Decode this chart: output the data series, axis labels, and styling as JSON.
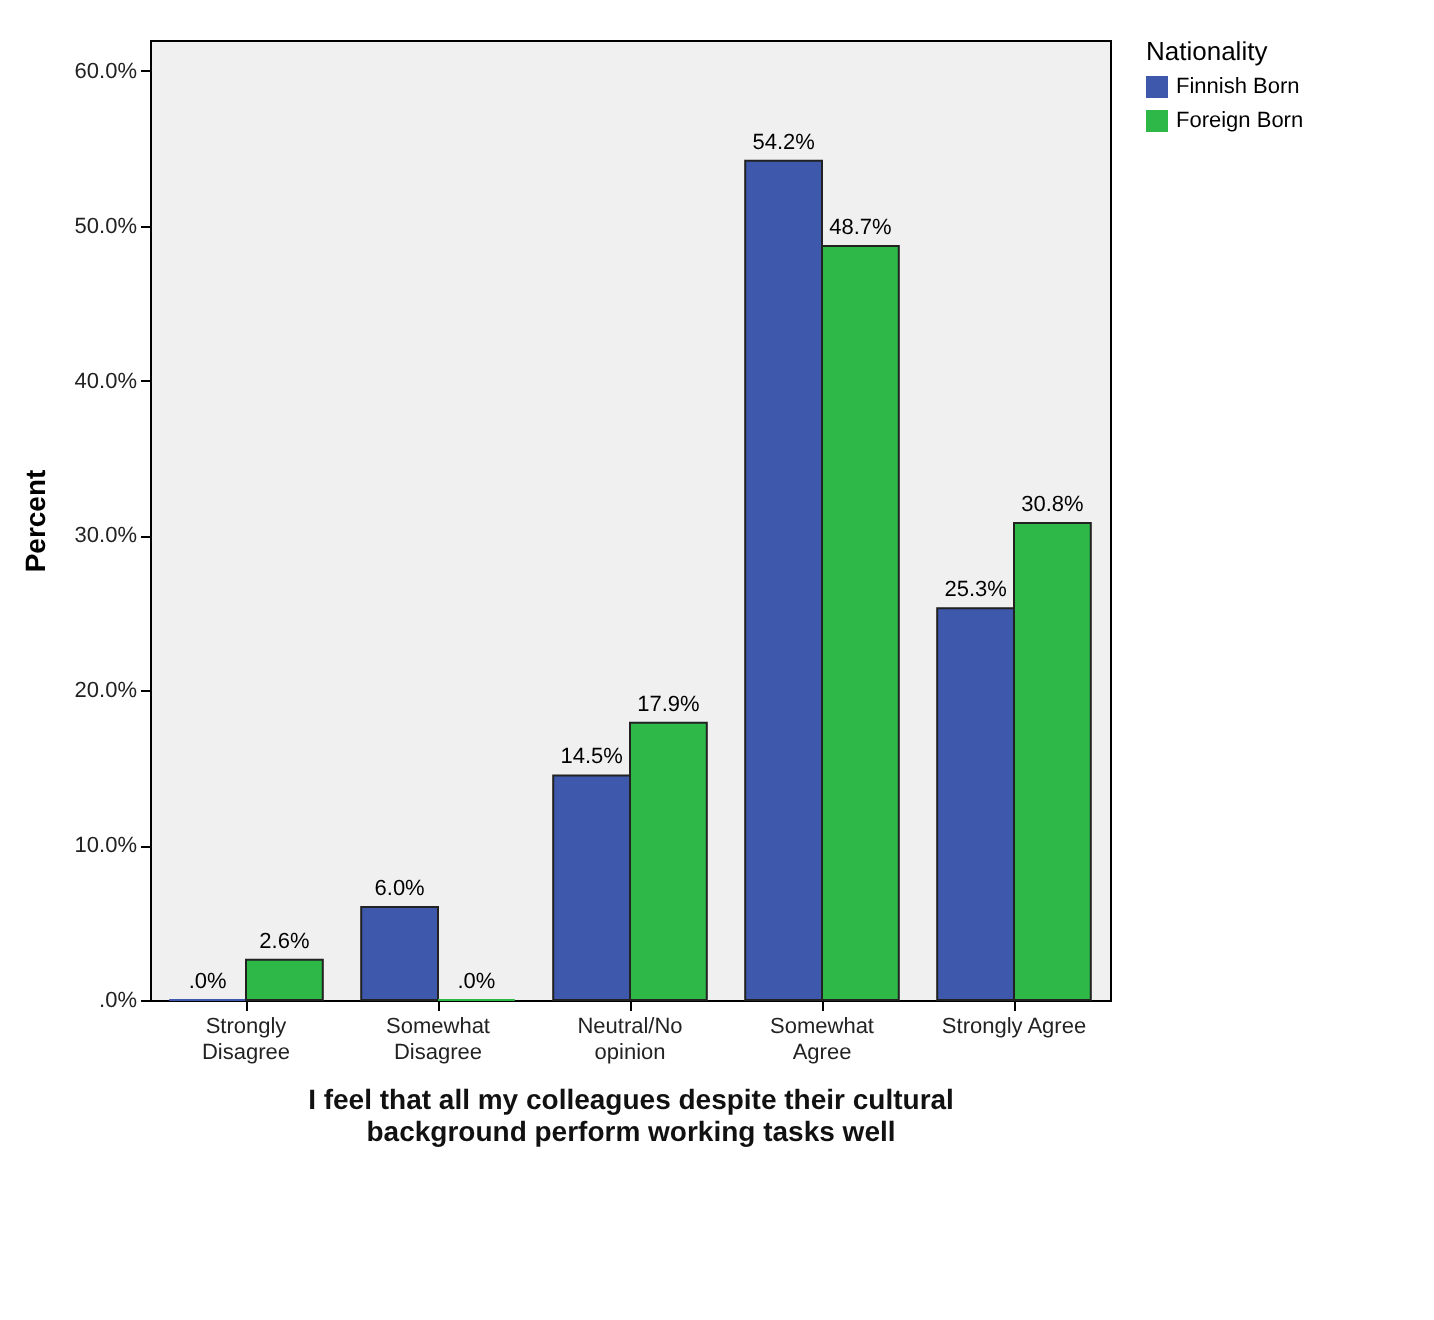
{
  "chart_data": {
    "type": "bar",
    "xlabel": "I feel that all my colleagues despite their cultural\nbackground perform working tasks well",
    "ylabel": "Percent",
    "legend_title": "Nationality",
    "legend": "top right",
    "categories": [
      "Strongly\nDisagree",
      "Somewhat\nDisagree",
      "Neutral/No\nopinion",
      "Somewhat\nAgree",
      "Strongly Agree"
    ],
    "series": [
      {
        "name": "Finnish Born",
        "color": "#3e58ac",
        "values": [
          0,
          6.0,
          14.5,
          54.2,
          25.3
        ],
        "value_labels": [
          ".0%",
          "6.0%",
          "14.5%",
          "54.2%",
          "25.3%"
        ]
      },
      {
        "name": "Foreign Born",
        "color": "#2eb848",
        "values": [
          2.6,
          0,
          17.9,
          48.7,
          30.8
        ],
        "value_labels": [
          "2.6%",
          ".0%",
          "17.9%",
          "48.7%",
          "30.8%"
        ]
      }
    ],
    "ylim": [
      0,
      62
    ],
    "yticks": [
      {
        "value": 0,
        "label": ".0%"
      },
      {
        "value": 10,
        "label": "10.0%"
      },
      {
        "value": 20,
        "label": "20.0%"
      },
      {
        "value": 30,
        "label": "30.0%"
      },
      {
        "value": 40,
        "label": "40.0%"
      },
      {
        "value": 50,
        "label": "50.0%"
      },
      {
        "value": 60,
        "label": "60.0%"
      }
    ],
    "grid": false
  }
}
